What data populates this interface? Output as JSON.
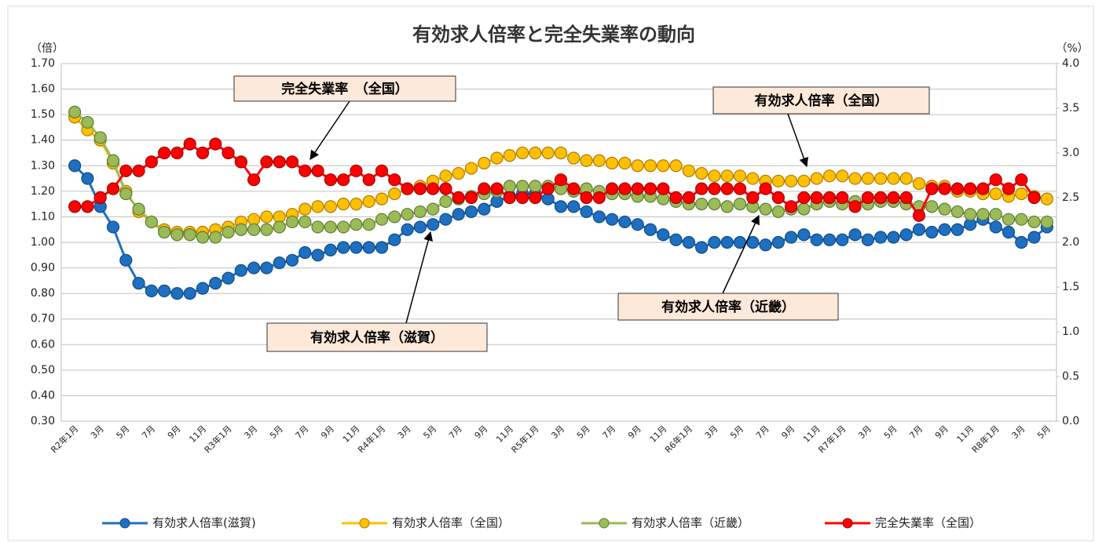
{
  "chart_data": {
    "type": "line",
    "title": "有効求人倍率と完全失業率の動向",
    "y_label": "（倍）",
    "y2_label": "（%）",
    "categories": [
      "R2年1月",
      null,
      "3月",
      null,
      "5月",
      null,
      "7月",
      null,
      "9月",
      null,
      "11月",
      null,
      "R3年1月",
      null,
      "3月",
      null,
      "5月",
      null,
      "7月",
      null,
      "9月",
      null,
      "11月",
      null,
      "R4年1月",
      null,
      "3月",
      null,
      "5月",
      null,
      "7月",
      null,
      "9月",
      null,
      "11月",
      null,
      "R5年1月",
      null,
      "3月",
      null,
      "5月",
      null,
      "7月",
      null,
      "9月",
      null,
      "11月",
      null,
      "R6年1月",
      null,
      "3月",
      null,
      "5月",
      null,
      "7月",
      null,
      "9月",
      null,
      "11月",
      null,
      "R7年1月",
      null,
      "3月",
      null,
      "5月",
      null,
      "7月",
      null,
      "9月",
      null,
      "11月",
      null,
      "R8年1月",
      null,
      "3月",
      null,
      "5月"
    ],
    "series": [
      {
        "name": "有効求人倍率(滋賀)",
        "color": "#1f6fc0",
        "stroke": "#0d4a8a",
        "values": [
          1.3,
          1.25,
          1.14,
          1.06,
          0.93,
          0.84,
          0.81,
          0.81,
          0.8,
          0.8,
          0.82,
          0.84,
          0.86,
          0.89,
          0.9,
          0.9,
          0.92,
          0.93,
          0.96,
          0.95,
          0.97,
          0.98,
          0.98,
          0.98,
          0.98,
          1.01,
          1.05,
          1.06,
          1.07,
          1.09,
          1.11,
          1.12,
          1.13,
          1.16,
          1.18,
          1.19,
          1.19,
          1.17,
          1.14,
          1.14,
          1.12,
          1.1,
          1.09,
          1.08,
          1.07,
          1.05,
          1.03,
          1.01,
          1.0,
          0.98,
          1.0,
          1.0,
          1.0,
          1.0,
          0.99,
          1.0,
          1.02,
          1.03,
          1.01,
          1.01,
          1.01,
          1.03,
          1.01,
          1.02,
          1.02,
          1.03,
          1.05,
          1.04,
          1.05,
          1.05,
          1.07,
          1.09,
          1.06,
          1.04,
          1.0,
          1.02,
          1.06
        ]
      },
      {
        "name": "有効求人倍率（全国）",
        "color": "#ffc000",
        "stroke": "#b07800",
        "values": [
          1.49,
          1.44,
          1.4,
          1.31,
          1.2,
          1.12,
          1.08,
          1.05,
          1.04,
          1.04,
          1.04,
          1.05,
          1.06,
          1.08,
          1.09,
          1.1,
          1.1,
          1.11,
          1.13,
          1.14,
          1.14,
          1.15,
          1.15,
          1.16,
          1.17,
          1.19,
          1.21,
          1.22,
          1.24,
          1.26,
          1.27,
          1.29,
          1.31,
          1.33,
          1.34,
          1.35,
          1.35,
          1.35,
          1.35,
          1.33,
          1.32,
          1.32,
          1.31,
          1.31,
          1.3,
          1.3,
          1.3,
          1.3,
          1.28,
          1.27,
          1.26,
          1.26,
          1.26,
          1.25,
          1.24,
          1.24,
          1.24,
          1.24,
          1.25,
          1.26,
          1.26,
          1.25,
          1.25,
          1.25,
          1.25,
          1.25,
          1.23,
          1.22,
          1.22,
          1.2,
          1.2,
          1.19,
          1.19,
          1.18,
          1.19,
          1.18,
          1.17
        ]
      },
      {
        "name": "有効求人倍率（近畿）",
        "color": "#9bbb59",
        "stroke": "#5f7a30",
        "values": [
          1.51,
          1.47,
          1.41,
          1.32,
          1.19,
          1.13,
          1.08,
          1.04,
          1.03,
          1.03,
          1.02,
          1.02,
          1.04,
          1.05,
          1.05,
          1.05,
          1.06,
          1.08,
          1.08,
          1.06,
          1.06,
          1.06,
          1.07,
          1.07,
          1.09,
          1.1,
          1.11,
          1.12,
          1.13,
          1.16,
          1.17,
          1.18,
          1.19,
          1.2,
          1.22,
          1.22,
          1.22,
          1.22,
          1.21,
          1.2,
          1.21,
          1.2,
          1.19,
          1.19,
          1.18,
          1.18,
          1.17,
          1.16,
          1.15,
          1.15,
          1.15,
          1.14,
          1.15,
          1.14,
          1.13,
          1.12,
          1.13,
          1.13,
          1.15,
          1.16,
          1.15,
          1.16,
          1.15,
          1.16,
          1.16,
          1.15,
          1.14,
          1.14,
          1.13,
          1.12,
          1.11,
          1.11,
          1.11,
          1.09,
          1.09,
          1.08,
          1.08
        ]
      },
      {
        "name": "完全失業率（全国）",
        "color": "#ff0000",
        "stroke": "#a00000",
        "axis": "y2",
        "values": [
          2.4,
          2.4,
          2.5,
          2.6,
          2.8,
          2.8,
          2.9,
          3.0,
          3.0,
          3.1,
          3.0,
          3.1,
          3.0,
          2.9,
          2.7,
          2.9,
          2.9,
          2.9,
          2.8,
          2.8,
          2.7,
          2.7,
          2.8,
          2.7,
          2.8,
          2.7,
          2.6,
          2.6,
          2.6,
          2.6,
          2.5,
          2.5,
          2.6,
          2.6,
          2.5,
          2.5,
          2.5,
          2.6,
          2.7,
          2.6,
          2.5,
          2.5,
          2.6,
          2.6,
          2.6,
          2.6,
          2.6,
          2.5,
          2.5,
          2.6,
          2.6,
          2.6,
          2.6,
          2.5,
          2.6,
          2.5,
          2.4,
          2.5,
          2.5,
          2.5,
          2.5,
          2.4,
          2.5,
          2.5,
          2.5,
          2.5,
          2.3,
          2.6,
          2.6,
          2.6,
          2.6,
          2.6,
          2.7,
          2.6,
          2.7,
          2.5,
          null
        ]
      }
    ],
    "ylim": [
      0.3,
      1.7
    ],
    "yticks": [
      {
        "value": 0.3,
        "label": "0.30"
      },
      {
        "value": 0.4,
        "label": "0.40"
      },
      {
        "value": 0.5,
        "label": "0.50"
      },
      {
        "value": 0.6,
        "label": "0.60"
      },
      {
        "value": 0.7,
        "label": "0.70"
      },
      {
        "value": 0.8,
        "label": "0.80"
      },
      {
        "value": 0.9,
        "label": "0.90"
      },
      {
        "value": 1.0,
        "label": "1.00"
      },
      {
        "value": 1.1,
        "label": "1.10"
      },
      {
        "value": 1.2,
        "label": "1.20"
      },
      {
        "value": 1.3,
        "label": "1.30"
      },
      {
        "value": 1.4,
        "label": "1.40"
      },
      {
        "value": 1.5,
        "label": "1.50"
      },
      {
        "value": 1.6,
        "label": "1.60"
      },
      {
        "value": 1.7,
        "label": "1.70"
      }
    ],
    "y2lim": [
      0,
      4
    ],
    "y2ticks": [
      {
        "value": 0,
        "label": "0.0"
      },
      0.5,
      {
        "value": 1,
        "label": "1.0"
      },
      1.5,
      {
        "value": 2,
        "label": "2.0"
      },
      2.5,
      {
        "value": 3,
        "label": "3.0"
      },
      3.5,
      {
        "value": 4,
        "label": "4.0"
      }
    ],
    "grid": true,
    "legend": "bottom",
    "annotations": [
      {
        "text": "完全失業率　（全国）"
      },
      {
        "text": "有効求人倍率（全国）"
      },
      {
        "text": "有効求人倍率（近畿）"
      },
      {
        "text": "有効求人倍率（滋賀）"
      }
    ]
  }
}
